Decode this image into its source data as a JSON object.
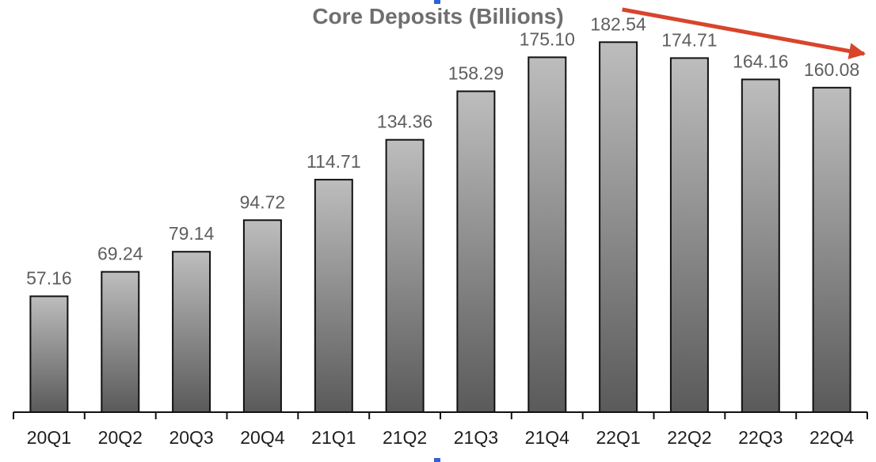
{
  "chart_data": {
    "type": "bar",
    "title": "Core Deposits (Billions)",
    "xlabel": "",
    "ylabel": "",
    "categories": [
      "20Q1",
      "20Q2",
      "20Q3",
      "20Q4",
      "21Q1",
      "21Q2",
      "21Q3",
      "21Q4",
      "22Q1",
      "22Q2",
      "22Q3",
      "22Q4"
    ],
    "values": [
      57.16,
      69.24,
      79.14,
      94.72,
      114.71,
      134.36,
      158.29,
      175.1,
      182.54,
      174.71,
      164.16,
      160.08
    ],
    "value_labels": [
      "57.16",
      "69.24",
      "79.14",
      "94.72",
      "114.71",
      "134.36",
      "158.29",
      "175.10",
      "182.54",
      "174.71",
      "164.16",
      "160.08"
    ],
    "ylim": [
      0,
      185
    ],
    "grid": false,
    "legend": "none",
    "annotations": [
      {
        "type": "arrow",
        "from_category": "22Q1",
        "to_category": "22Q4",
        "color": "#d9442c"
      }
    ],
    "colors": {
      "bar_top": "#bdbdbd",
      "bar_bottom": "#5a5a5a",
      "bar_outline": "#111111",
      "arrow": "#d9442c",
      "title": "#6f6f6f",
      "data_label": "#5e5e5e",
      "tick_label": "#1e1e1e"
    }
  }
}
